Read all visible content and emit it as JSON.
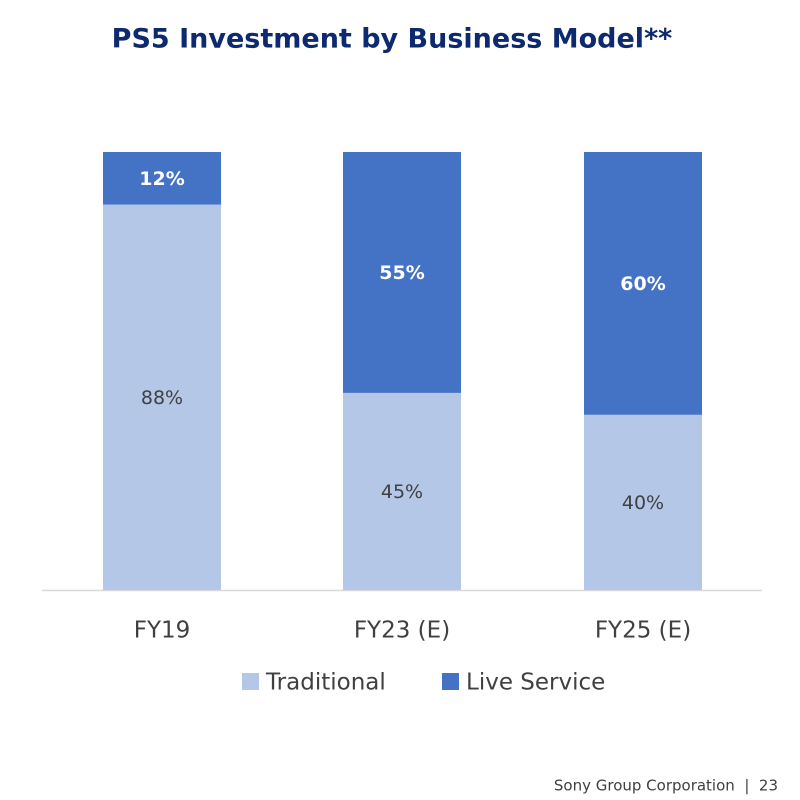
{
  "chart_data": {
    "type": "stacked_bar",
    "title": "PS5 Investment by Business Model**",
    "categories": [
      "FY19",
      "FY23 (E)",
      "FY25 (E)"
    ],
    "series": [
      {
        "name": "Traditional",
        "color": "#b4c7e7",
        "values": [
          88,
          45,
          40
        ],
        "value_labels": [
          "88%",
          "45%",
          "40%"
        ]
      },
      {
        "name": "Live Service",
        "color": "#4472c4",
        "values": [
          12,
          55,
          60
        ],
        "value_labels": [
          "12%",
          "55%",
          "60%"
        ]
      }
    ],
    "footer": "Sony Group Corporation  |  23"
  }
}
